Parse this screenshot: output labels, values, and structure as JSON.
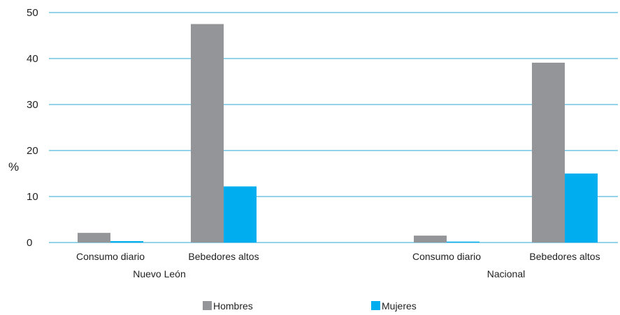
{
  "chart_data": {
    "type": "bar",
    "ylabel": "%",
    "ylim": [
      0,
      50
    ],
    "yticks": [
      "0",
      "10",
      "20",
      "30",
      "40",
      "50"
    ],
    "groups": [
      {
        "name": "Nuevo León",
        "categories": [
          "Consumo diario",
          "Bebedores altos"
        ]
      },
      {
        "name": "Nacional",
        "categories": [
          "Consumo diario",
          "Bebedores altos"
        ]
      }
    ],
    "series": [
      {
        "name": "Hombres",
        "color": "#939598",
        "values": [
          2.1,
          47.5,
          1.5,
          39.1
        ]
      },
      {
        "name": "Mujeres",
        "color": "#00aeef",
        "values": [
          0.3,
          12.2,
          0.2,
          15.0
        ]
      }
    ],
    "grid": true,
    "legend": "bottom"
  }
}
